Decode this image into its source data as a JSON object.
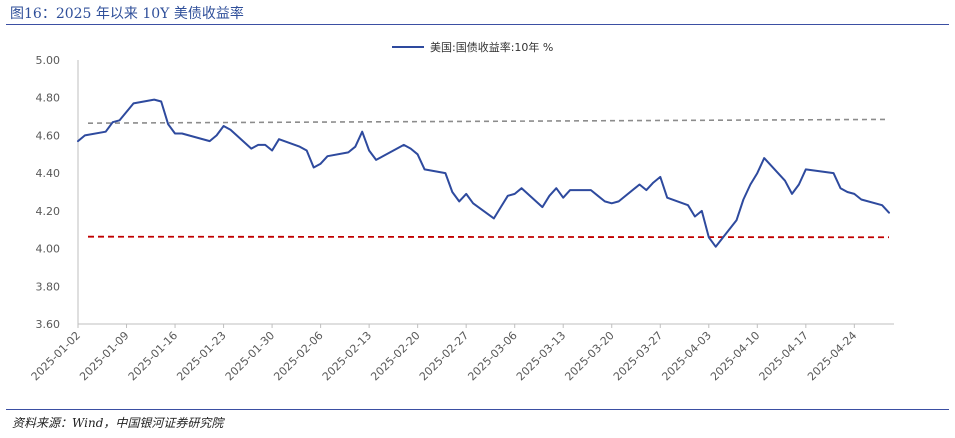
{
  "figure": {
    "title": "图16：2025 年以来 10Y 美债收益率",
    "source": "资料来源：Wind，中国银河证券研究院"
  },
  "chart_data": {
    "type": "line",
    "title": "图16：2025 年以来 10Y 美债收益率",
    "xlabel": "",
    "ylabel": "",
    "ylim": [
      3.6,
      5.0
    ],
    "yticks": [
      "5.00",
      "4.80",
      "4.60",
      "4.40",
      "4.20",
      "4.00",
      "3.80",
      "3.60"
    ],
    "grid": false,
    "legend_position": "top-center",
    "x_tick_labels": [
      "2025-01-02",
      "2025-01-09",
      "2025-01-16",
      "2025-01-23",
      "2025-01-30",
      "2025-02-06",
      "2025-02-13",
      "2025-02-20",
      "2025-02-27",
      "2025-03-06",
      "2025-03-13",
      "2025-03-20",
      "2025-03-27",
      "2025-04-03",
      "2025-04-10",
      "2025-04-17",
      "2025-04-24"
    ],
    "x": [
      "2025-01-02",
      "2025-01-03",
      "2025-01-06",
      "2025-01-07",
      "2025-01-08",
      "2025-01-10",
      "2025-01-13",
      "2025-01-14",
      "2025-01-15",
      "2025-01-16",
      "2025-01-17",
      "2025-01-21",
      "2025-01-22",
      "2025-01-23",
      "2025-01-24",
      "2025-01-27",
      "2025-01-28",
      "2025-01-29",
      "2025-01-30",
      "2025-01-31",
      "2025-02-03",
      "2025-02-04",
      "2025-02-05",
      "2025-02-06",
      "2025-02-07",
      "2025-02-10",
      "2025-02-11",
      "2025-02-12",
      "2025-02-13",
      "2025-02-14",
      "2025-02-18",
      "2025-02-19",
      "2025-02-20",
      "2025-02-21",
      "2025-02-24",
      "2025-02-25",
      "2025-02-26",
      "2025-02-27",
      "2025-02-28",
      "2025-03-03",
      "2025-03-04",
      "2025-03-05",
      "2025-03-06",
      "2025-03-07",
      "2025-03-10",
      "2025-03-11",
      "2025-03-12",
      "2025-03-13",
      "2025-03-14",
      "2025-03-17",
      "2025-03-18",
      "2025-03-19",
      "2025-03-20",
      "2025-03-21",
      "2025-03-24",
      "2025-03-25",
      "2025-03-26",
      "2025-03-27",
      "2025-03-28",
      "2025-03-31",
      "2025-04-01",
      "2025-04-02",
      "2025-04-03",
      "2025-04-04",
      "2025-04-07",
      "2025-04-08",
      "2025-04-09",
      "2025-04-10",
      "2025-04-11",
      "2025-04-14",
      "2025-04-15",
      "2025-04-16",
      "2025-04-17",
      "2025-04-21",
      "2025-04-22",
      "2025-04-23",
      "2025-04-24",
      "2025-04-25",
      "2025-04-28",
      "2025-04-29"
    ],
    "series": [
      {
        "name": "美国:国债收益率:10年 %",
        "color": "#2e4a9e",
        "values": [
          4.57,
          4.6,
          4.62,
          4.67,
          4.68,
          4.77,
          4.79,
          4.78,
          4.66,
          4.61,
          4.61,
          4.57,
          4.6,
          4.65,
          4.63,
          4.53,
          4.55,
          4.55,
          4.52,
          4.58,
          4.54,
          4.52,
          4.43,
          4.45,
          4.49,
          4.51,
          4.54,
          4.62,
          4.52,
          4.47,
          4.55,
          4.53,
          4.5,
          4.42,
          4.4,
          4.3,
          4.25,
          4.29,
          4.24,
          4.16,
          4.22,
          4.28,
          4.29,
          4.32,
          4.22,
          4.28,
          4.32,
          4.27,
          4.31,
          4.31,
          4.28,
          4.25,
          4.24,
          4.25,
          4.34,
          4.31,
          4.35,
          4.38,
          4.27,
          4.23,
          4.17,
          4.2,
          4.06,
          4.01,
          4.15,
          4.26,
          4.34,
          4.4,
          4.48,
          4.36,
          4.29,
          4.34,
          4.42,
          4.4,
          4.32,
          4.3,
          4.29,
          4.26,
          4.23,
          4.19
        ]
      }
    ],
    "reference_lines": [
      {
        "y_start": 4.665,
        "y_end": 4.685,
        "color": "#8c8c8c",
        "style": "dashed"
      },
      {
        "y_start": 4.063,
        "y_end": 4.06,
        "color": "#c00000",
        "style": "dashed"
      }
    ]
  }
}
